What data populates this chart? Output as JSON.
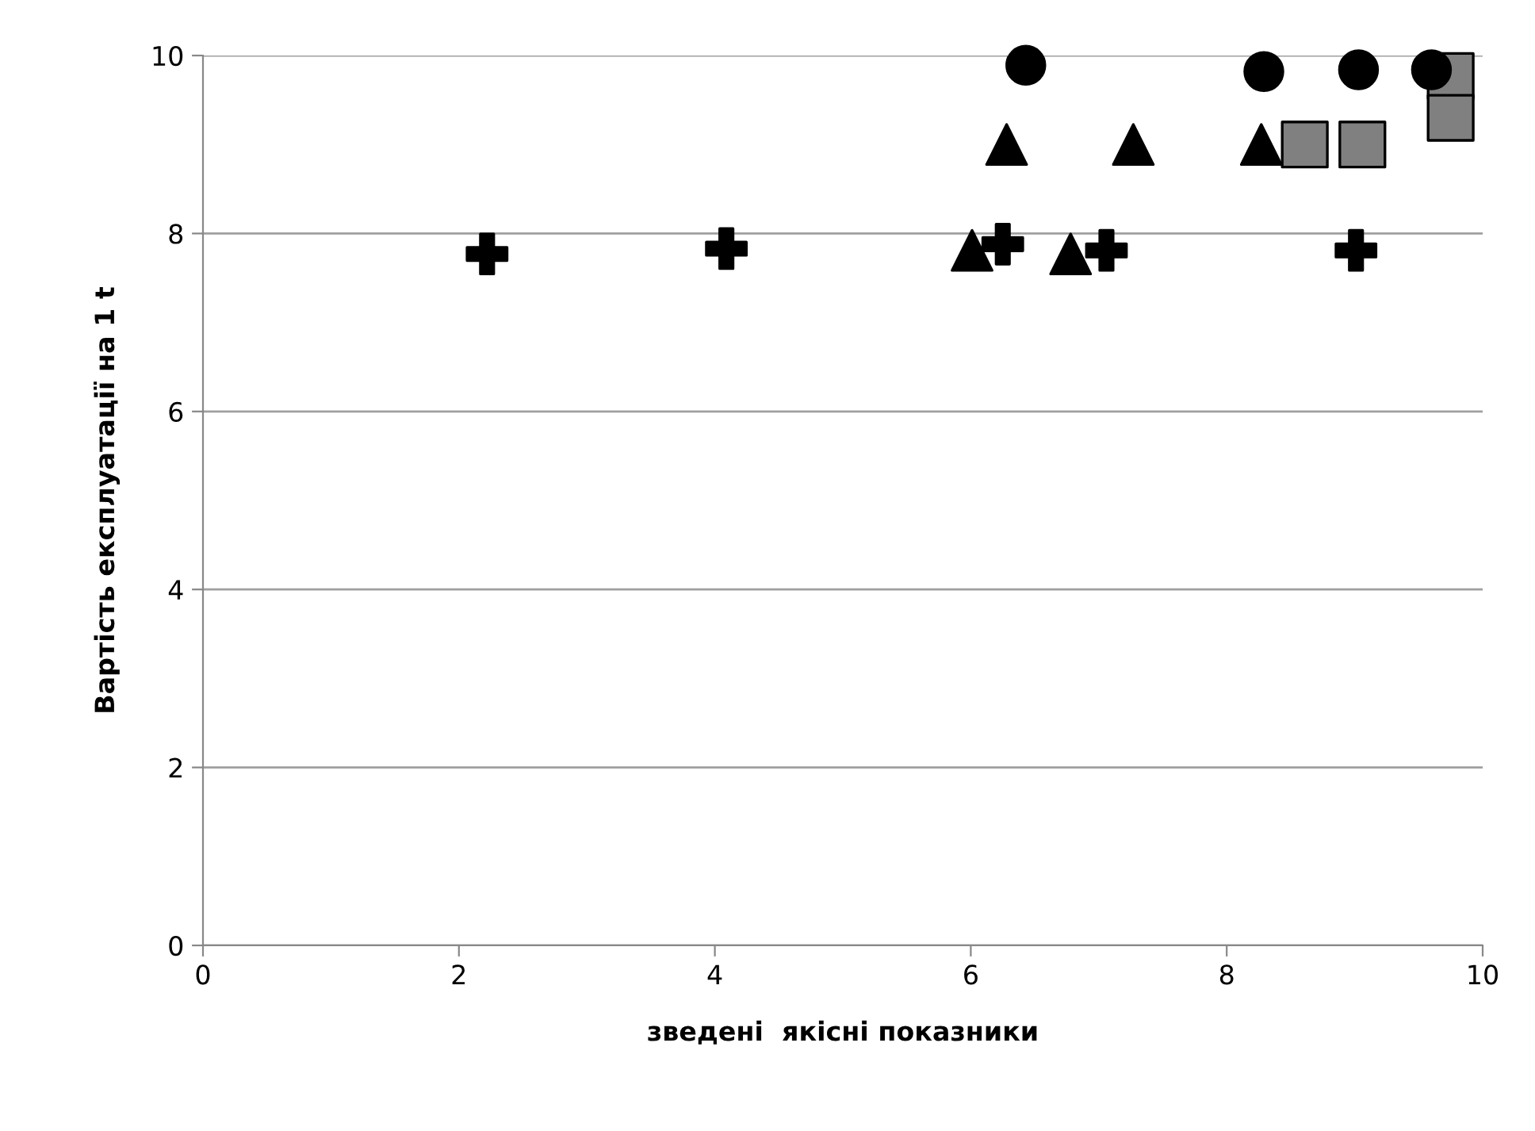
{
  "chart_data": {
    "type": "scatter",
    "xlabel": "зведені  якісні показники",
    "ylabel": "Вартість експлуатації на 1 t",
    "xlim": [
      0,
      10
    ],
    "xticks": [
      0,
      2,
      4,
      6,
      8,
      10
    ],
    "ylim": [
      0,
      10
    ],
    "yticks": [
      0,
      2,
      4,
      6,
      8,
      10
    ],
    "grid": "y",
    "series": [
      {
        "color": "#000000",
        "marker": "cross",
        "x": [
          2.22,
          4.09,
          6.25,
          7.06,
          9.01
        ],
        "values": [
          7.77,
          7.83,
          7.88,
          7.81,
          7.81
        ]
      },
      {
        "color": "#000000",
        "marker": "triangle",
        "x": [
          6.01,
          6.78,
          6.28,
          7.27,
          8.27
        ],
        "values": [
          7.81,
          7.77,
          9.0,
          9.0,
          9.0
        ]
      },
      {
        "color": "#808080",
        "marker": "square",
        "x": [
          8.61,
          9.06,
          9.75,
          9.75
        ],
        "values": [
          9.0,
          9.0,
          9.77,
          9.3
        ]
      },
      {
        "color": "#000000",
        "marker": "circle",
        "x": [
          6.43,
          8.29,
          9.03,
          9.6
        ],
        "values": [
          9.89,
          9.82,
          9.84,
          9.84
        ]
      }
    ]
  }
}
